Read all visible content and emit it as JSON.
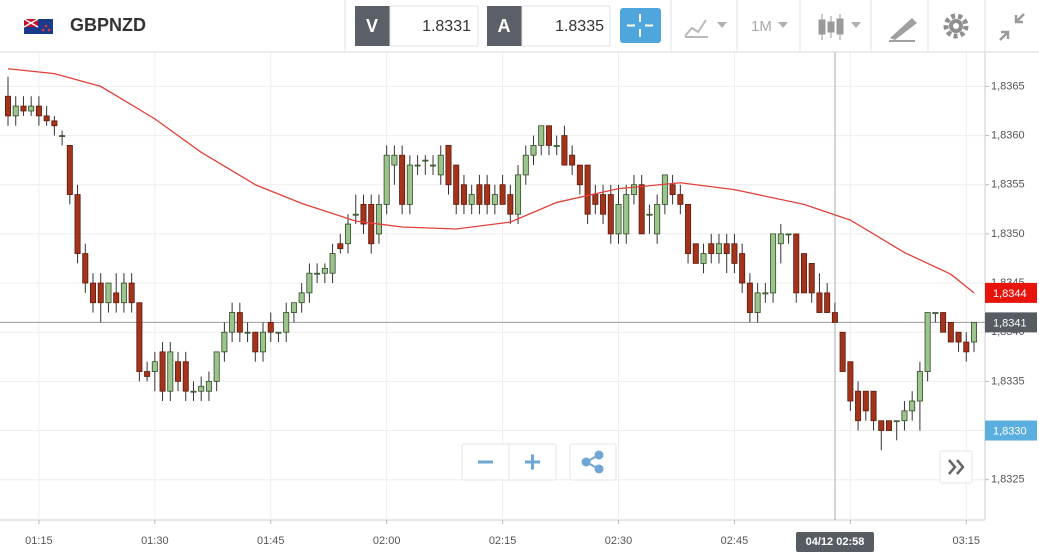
{
  "toolbar": {
    "symbol": "GBPNZD",
    "bid_tag": "V",
    "bid": 1.8331,
    "ask_tag": "A",
    "ask": 1.8335,
    "interval": "1M"
  },
  "chart_data": {
    "type": "candlestick",
    "colors": {
      "up": "#9dc48e",
      "down": "#a4331c",
      "ma": "#e0413a"
    },
    "x": [
      "01:11",
      "01:12",
      "01:13",
      "01:14",
      "01:15",
      "01:16",
      "01:17",
      "01:18",
      "01:19",
      "01:20",
      "01:21",
      "01:22",
      "01:23",
      "01:24",
      "01:25",
      "01:26",
      "01:27",
      "01:28",
      "01:29",
      "01:30",
      "01:31",
      "01:32",
      "01:33",
      "01:34",
      "01:35",
      "01:36",
      "01:37",
      "01:38",
      "01:39",
      "01:40",
      "01:41",
      "01:42",
      "01:43",
      "01:44",
      "01:45",
      "01:46",
      "01:47",
      "01:48",
      "01:49",
      "01:50",
      "01:51",
      "01:52",
      "01:53",
      "01:54",
      "01:55",
      "01:56",
      "01:57",
      "01:58",
      "01:59",
      "02:00",
      "02:01",
      "02:02",
      "02:03",
      "02:04",
      "02:05",
      "02:06",
      "02:07",
      "02:08",
      "02:09",
      "02:10",
      "02:11",
      "02:12",
      "02:13",
      "02:14",
      "02:15",
      "02:16",
      "02:17",
      "02:18",
      "02:19",
      "02:20",
      "02:21",
      "02:22",
      "02:23",
      "02:24",
      "02:25",
      "02:26",
      "02:27",
      "02:28",
      "02:29",
      "02:30",
      "02:31",
      "02:32",
      "02:33",
      "02:34",
      "02:35",
      "02:36",
      "02:37",
      "02:38",
      "02:39",
      "02:40",
      "02:41",
      "02:42",
      "02:43",
      "02:44",
      "02:45",
      "02:46",
      "02:47",
      "02:48",
      "02:49",
      "02:50",
      "02:51",
      "02:52",
      "02:53",
      "02:54",
      "02:55",
      "02:56",
      "02:57",
      "02:58",
      "02:59",
      "03:00",
      "03:01",
      "03:02",
      "03:03",
      "03:04",
      "03:05",
      "03:06",
      "03:07",
      "03:08",
      "03:09",
      "03:10",
      "03:11",
      "03:12",
      "03:13",
      "03:14",
      "03:15",
      "03:16"
    ],
    "candles": [
      [
        1.8364,
        1.8366,
        1.8361,
        1.8362
      ],
      [
        1.8362,
        1.8364,
        1.8361,
        1.8363
      ],
      [
        1.8363,
        1.8364,
        1.8362,
        1.83625
      ],
      [
        1.83625,
        1.8364,
        1.8362,
        1.8363
      ],
      [
        1.8363,
        1.8364,
        1.8361,
        1.8362
      ],
      [
        1.8362,
        1.8363,
        1.8361,
        1.83615
      ],
      [
        1.83615,
        1.8362,
        1.836,
        1.8361
      ],
      [
        1.836,
        1.83605,
        1.8359,
        1.836
      ],
      [
        1.8359,
        1.8359,
        1.8353,
        1.8354
      ],
      [
        1.8354,
        1.8355,
        1.8347,
        1.8348
      ],
      [
        1.8348,
        1.8349,
        1.8344,
        1.8345
      ],
      [
        1.8345,
        1.8346,
        1.8342,
        1.8343
      ],
      [
        1.8345,
        1.8346,
        1.8341,
        1.8343
      ],
      [
        1.8343,
        1.8345,
        1.8342,
        1.8345
      ],
      [
        1.8344,
        1.8346,
        1.8342,
        1.8343
      ],
      [
        1.8343,
        1.8346,
        1.8342,
        1.8345
      ],
      [
        1.8345,
        1.8346,
        1.8342,
        1.8343
      ],
      [
        1.8343,
        1.8343,
        1.8335,
        1.8336
      ],
      [
        1.8336,
        1.8337,
        1.8335,
        1.83355
      ],
      [
        1.8336,
        1.8338,
        1.8334,
        1.8337
      ],
      [
        1.8338,
        1.8339,
        1.8333,
        1.8334
      ],
      [
        1.8334,
        1.8339,
        1.8333,
        1.8338
      ],
      [
        1.8337,
        1.8338,
        1.8334,
        1.8335
      ],
      [
        1.8337,
        1.8338,
        1.8333,
        1.8334
      ],
      [
        1.8334,
        1.8335,
        1.8333,
        1.8334
      ],
      [
        1.8334,
        1.83355,
        1.8333,
        1.83345
      ],
      [
        1.8334,
        1.8336,
        1.8333,
        1.8335
      ],
      [
        1.8335,
        1.8338,
        1.8334,
        1.8338
      ],
      [
        1.8338,
        1.8341,
        1.8337,
        1.834
      ],
      [
        1.834,
        1.8343,
        1.8339,
        1.8342
      ],
      [
        1.8342,
        1.8343,
        1.8339,
        1.834
      ],
      [
        1.834,
        1.8341,
        1.8339,
        1.834
      ],
      [
        1.834,
        1.834,
        1.8337,
        1.8338
      ],
      [
        1.8338,
        1.8341,
        1.8337,
        1.834
      ],
      [
        1.8341,
        1.8342,
        1.8339,
        1.834
      ],
      [
        1.834,
        1.834,
        1.8339,
        1.834
      ],
      [
        1.834,
        1.8343,
        1.8339,
        1.8342
      ],
      [
        1.8342,
        1.8343,
        1.8341,
        1.8343
      ],
      [
        1.8343,
        1.8345,
        1.8342,
        1.8344
      ],
      [
        1.8344,
        1.8347,
        1.8343,
        1.8346
      ],
      [
        1.8346,
        1.8347,
        1.8345,
        1.8346
      ],
      [
        1.8346,
        1.8347,
        1.8345,
        1.83465
      ],
      [
        1.8346,
        1.8349,
        1.8345,
        1.8348
      ],
      [
        1.8349,
        1.835,
        1.8348,
        1.83485
      ],
      [
        1.8349,
        1.8352,
        1.8348,
        1.8351
      ],
      [
        1.8352,
        1.8354,
        1.8351,
        1.8352
      ],
      [
        1.8353,
        1.8354,
        1.835,
        1.8351
      ],
      [
        1.8353,
        1.8354,
        1.8348,
        1.8349
      ],
      [
        1.835,
        1.8354,
        1.8349,
        1.8353
      ],
      [
        1.8353,
        1.8359,
        1.8352,
        1.8358
      ],
      [
        1.8357,
        1.8359,
        1.8355,
        1.8358
      ],
      [
        1.8358,
        1.8359,
        1.8352,
        1.8353
      ],
      [
        1.8353,
        1.8358,
        1.8352,
        1.8357
      ],
      [
        1.8357,
        1.8358,
        1.8356,
        1.8357
      ],
      [
        1.83575,
        1.8358,
        1.8356,
        1.83575
      ],
      [
        1.8357,
        1.8358,
        1.8356,
        1.8357
      ],
      [
        1.8356,
        1.8359,
        1.8355,
        1.8358
      ],
      [
        1.8359,
        1.8359,
        1.8354,
        1.8355
      ],
      [
        1.8357,
        1.8357,
        1.8352,
        1.8353
      ],
      [
        1.8355,
        1.8356,
        1.8352,
        1.8353
      ],
      [
        1.8353,
        1.8355,
        1.8352,
        1.8354
      ],
      [
        1.8355,
        1.8356,
        1.8352,
        1.8353
      ],
      [
        1.8355,
        1.8356,
        1.8352,
        1.8353
      ],
      [
        1.8353,
        1.8355,
        1.8352,
        1.8354
      ],
      [
        1.8355,
        1.8356,
        1.8353,
        1.8353
      ],
      [
        1.8354,
        1.8355,
        1.8351,
        1.8352
      ],
      [
        1.8352,
        1.8357,
        1.8351,
        1.8356
      ],
      [
        1.8356,
        1.8359,
        1.8355,
        1.8358
      ],
      [
        1.8358,
        1.836,
        1.8357,
        1.8359
      ],
      [
        1.8359,
        1.8361,
        1.8358,
        1.8361
      ],
      [
        1.8361,
        1.8361,
        1.8358,
        1.8359
      ],
      [
        1.8359,
        1.836,
        1.8358,
        1.8359
      ],
      [
        1.836,
        1.8361,
        1.8357,
        1.8357
      ],
      [
        1.8358,
        1.8359,
        1.8356,
        1.8357
      ],
      [
        1.8357,
        1.8357,
        1.8354,
        1.8355
      ],
      [
        1.8357,
        1.8357,
        1.8351,
        1.8352
      ],
      [
        1.8354,
        1.8355,
        1.8352,
        1.8353
      ],
      [
        1.8354,
        1.8355,
        1.8351,
        1.8352
      ],
      [
        1.8354,
        1.8355,
        1.8349,
        1.835
      ],
      [
        1.835,
        1.8355,
        1.8349,
        1.8353
      ],
      [
        1.835,
        1.8355,
        1.8349,
        1.8354
      ],
      [
        1.8354,
        1.8356,
        1.8353,
        1.8355
      ],
      [
        1.8355,
        1.8356,
        1.835,
        1.835
      ],
      [
        1.8352,
        1.8353,
        1.835,
        1.8352
      ],
      [
        1.835,
        1.8354,
        1.8349,
        1.8353
      ],
      [
        1.8353,
        1.8356,
        1.8352,
        1.8356
      ],
      [
        1.8355,
        1.8356,
        1.8353,
        1.8354
      ],
      [
        1.8354,
        1.8355,
        1.8352,
        1.8353
      ],
      [
        1.8353,
        1.8353,
        1.8347,
        1.8348
      ],
      [
        1.8349,
        1.8349,
        1.8347,
        1.8347
      ],
      [
        1.8347,
        1.8349,
        1.8346,
        1.8348
      ],
      [
        1.8349,
        1.835,
        1.8347,
        1.8348
      ],
      [
        1.8348,
        1.835,
        1.8347,
        1.8349
      ],
      [
        1.8349,
        1.835,
        1.8346,
        1.8348
      ],
      [
        1.8349,
        1.835,
        1.8346,
        1.8347
      ],
      [
        1.8348,
        1.8349,
        1.8344,
        1.8345
      ],
      [
        1.8345,
        1.8346,
        1.8341,
        1.8342
      ],
      [
        1.8342,
        1.8345,
        1.8341,
        1.8344
      ],
      [
        1.8344,
        1.8345,
        1.8343,
        1.8344
      ],
      [
        1.8344,
        1.835,
        1.8343,
        1.835
      ],
      [
        1.8349,
        1.8351,
        1.8347,
        1.835
      ],
      [
        1.835,
        1.835,
        1.8349,
        1.835
      ],
      [
        1.835,
        1.835,
        1.8343,
        1.8344
      ],
      [
        1.8348,
        1.8348,
        1.8344,
        1.8344
      ],
      [
        1.8347,
        1.8347,
        1.8343,
        1.8344
      ],
      [
        1.8344,
        1.8346,
        1.8342,
        1.8342
      ],
      [
        1.8344,
        1.8345,
        1.8342,
        1.8342
      ],
      [
        1.8342,
        1.8343,
        1.8341,
        1.8341
      ],
      [
        1.834,
        1.834,
        1.8336,
        1.8336
      ],
      [
        1.8337,
        1.8337,
        1.8332,
        1.8333
      ],
      [
        1.8334,
        1.8335,
        1.833,
        1.8331
      ],
      [
        1.8334,
        1.8334,
        1.8331,
        1.8332
      ],
      [
        1.8334,
        1.8334,
        1.833,
        1.8331
      ],
      [
        1.8331,
        1.8331,
        1.8328,
        1.833
      ],
      [
        1.8331,
        1.8331,
        1.833,
        1.833
      ],
      [
        1.8331,
        1.8331,
        1.8329,
        1.8331
      ],
      [
        1.8331,
        1.8333,
        1.833,
        1.8332
      ],
      [
        1.8332,
        1.8334,
        1.8331,
        1.8333
      ],
      [
        1.8333,
        1.8337,
        1.833,
        1.8336
      ],
      [
        1.8336,
        1.8342,
        1.8335,
        1.8342
      ],
      [
        1.8342,
        1.8342,
        1.8341,
        1.8342
      ],
      [
        1.8342,
        1.8342,
        1.834,
        1.834
      ],
      [
        1.8341,
        1.8341,
        1.8339,
        1.8339
      ],
      [
        1.834,
        1.834,
        1.8338,
        1.8339
      ],
      [
        1.8339,
        1.834,
        1.8337,
        1.8338
      ],
      [
        1.8339,
        1.8341,
        1.8338,
        1.8341
      ]
    ],
    "ma": {
      "x": [
        "01:11",
        "01:17",
        "01:23",
        "01:30",
        "01:36",
        "01:43",
        "01:49",
        "01:56",
        "02:02",
        "02:09",
        "02:16",
        "02:22",
        "02:30",
        "02:38",
        "02:45",
        "02:54",
        "03:00",
        "03:07",
        "03:13",
        "03:16"
      ],
      "values": [
        1.83668,
        1.83663,
        1.8365,
        1.83617,
        1.83583,
        1.8355,
        1.83531,
        1.83513,
        1.83507,
        1.83505,
        1.83512,
        1.83532,
        1.83546,
        1.83552,
        1.83545,
        1.8353,
        1.83514,
        1.83481,
        1.83459,
        1.8344
      ]
    },
    "ylim": [
      1.83209,
      1.83685
    ],
    "yticks": [
      {
        "value": 1.8325,
        "label": "1,8325"
      },
      {
        "value": 1.833,
        "label": "1,8330"
      },
      {
        "value": 1.8335,
        "label": "1,8335"
      },
      {
        "value": 1.834,
        "label": "1,8340"
      },
      {
        "value": 1.8345,
        "label": "1,8345"
      },
      {
        "value": 1.835,
        "label": "1,8350"
      },
      {
        "value": 1.8355,
        "label": "1,8355"
      },
      {
        "value": 1.836,
        "label": "1,8360"
      },
      {
        "value": 1.8365,
        "label": "1,8365"
      }
    ],
    "xticks": [
      "01:15",
      "01:30",
      "01:45",
      "02:00",
      "02:15",
      "02:30",
      "02:45",
      "03:00",
      "03:15"
    ],
    "price_labels": [
      {
        "value": 1.8344,
        "label": "1,8344",
        "color": "#e8140c"
      },
      {
        "value": 1.8341,
        "label": "1,8341",
        "color": "#575c63"
      },
      {
        "value": 1.833,
        "label": "1,8330",
        "color": "#5aafe0"
      }
    ],
    "crosshair": {
      "label": "04/12 02:58"
    },
    "grid": true
  }
}
